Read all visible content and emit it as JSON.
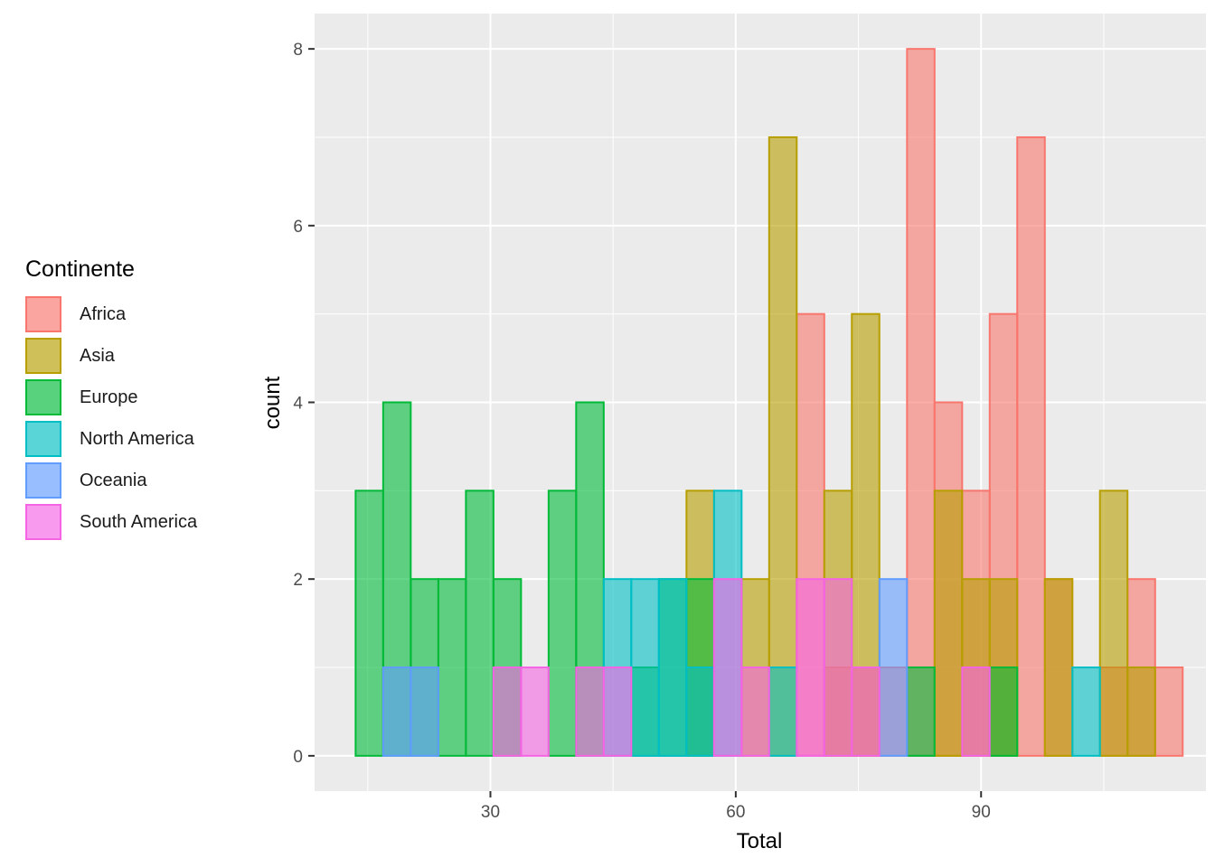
{
  "chart_data": {
    "type": "bar",
    "subtype": "overlapping-histogram",
    "xlabel": "Total",
    "ylabel": "count",
    "xlim": [
      8.5,
      117.5
    ],
    "ylim": [
      -0.4,
      8.4
    ],
    "x_ticks": [
      30,
      60,
      90
    ],
    "y_ticks": [
      0,
      2,
      4,
      6,
      8
    ],
    "grid": true,
    "legend_title": "Continente",
    "legend_position": "left",
    "bin_width": 3.37,
    "bin_centers": [
      15.2,
      18.57,
      21.95,
      25.32,
      28.69,
      32.06,
      35.43,
      38.8,
      42.17,
      45.54,
      48.91,
      52.29,
      55.66,
      59.03,
      62.4,
      65.77,
      69.14,
      72.51,
      75.88,
      79.26,
      82.63,
      86.0,
      89.37,
      92.74,
      96.11,
      99.48,
      102.85,
      106.22,
      109.6,
      112.97
    ],
    "series": [
      {
        "name": "Africa",
        "color": "#F8766D",
        "values": [
          0,
          0,
          0,
          0,
          0,
          0,
          0,
          0,
          0,
          0,
          0,
          0,
          0,
          0,
          0,
          0,
          5,
          1,
          1,
          1,
          8,
          4,
          3,
          5,
          7,
          2,
          0,
          1,
          2,
          1
        ]
      },
      {
        "name": "Asia",
        "color": "#B79F00",
        "values": [
          0,
          0,
          0,
          0,
          0,
          0,
          0,
          0,
          0,
          0,
          0,
          0,
          3,
          0,
          2,
          7,
          0,
          3,
          5,
          0,
          0,
          3,
          2,
          2,
          0,
          2,
          0,
          3,
          1,
          0
        ]
      },
      {
        "name": "Europe",
        "color": "#00BA38",
        "values": [
          3,
          4,
          2,
          2,
          3,
          2,
          0,
          3,
          4,
          0,
          1,
          2,
          2,
          0,
          0,
          0,
          0,
          0,
          0,
          0,
          1,
          0,
          0,
          1,
          0,
          0,
          0,
          0,
          0,
          0
        ]
      },
      {
        "name": "North America",
        "color": "#00BFC4",
        "values": [
          0,
          0,
          0,
          0,
          0,
          0,
          0,
          0,
          0,
          2,
          2,
          2,
          1,
          3,
          0,
          1,
          0,
          0,
          0,
          0,
          0,
          0,
          0,
          0,
          0,
          0,
          1,
          0,
          0,
          0
        ]
      },
      {
        "name": "Oceania",
        "color": "#619CFF",
        "values": [
          0,
          1,
          1,
          0,
          0,
          0,
          0,
          0,
          0,
          0,
          0,
          0,
          0,
          0,
          0,
          0,
          0,
          0,
          0,
          2,
          0,
          0,
          0,
          0,
          0,
          0,
          0,
          0,
          0,
          0
        ]
      },
      {
        "name": "South America",
        "color": "#F564E3",
        "values": [
          0,
          0,
          0,
          0,
          0,
          1,
          1,
          0,
          1,
          1,
          0,
          0,
          0,
          2,
          1,
          0,
          2,
          2,
          1,
          0,
          0,
          0,
          1,
          0,
          0,
          0,
          0,
          0,
          0,
          0
        ]
      }
    ]
  }
}
